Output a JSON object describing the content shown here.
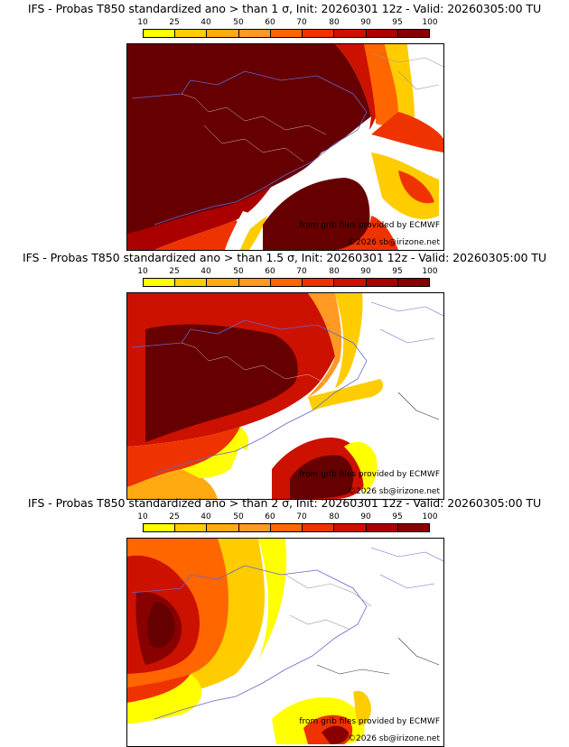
{
  "colors": {
    "scale": [
      "#ffff00",
      "#ffcc00",
      "#ffaa11",
      "#ff9922",
      "#ff6600",
      "#ee3300",
      "#cc1100",
      "#aa0000",
      "#880000",
      "#660000"
    ],
    "border": "#6666cc",
    "admin": "#ffffff",
    "grey_border": "#999999"
  },
  "scale_labels": [
    "10",
    "25",
    "40",
    "50",
    "60",
    "70",
    "80",
    "90",
    "95",
    "100"
  ],
  "panels": [
    {
      "title": "IFS - Probas T850  standardized ano > than 1 σ, Init: 20260301 12z - Valid: 20260305:00 TU",
      "credit": "from grib files provided by ECMWF",
      "copyright": "©2026 sb@irizone.net"
    },
    {
      "title": "IFS - Probas T850  standardized ano > than 1.5 σ, Init: 20260301 12z - Valid: 20260305:00 TU",
      "credit": "from grib files provided by ECMWF",
      "copyright": "©2026 sb@irizone.net"
    },
    {
      "title": "IFS - Probas T850  standardized ano > than 2 σ, Init: 20260301 12z - Valid: 20260305:00 TU",
      "credit": "from grib files provided by ECMWF",
      "copyright": "©2026 sb@irizone.net"
    }
  ]
}
